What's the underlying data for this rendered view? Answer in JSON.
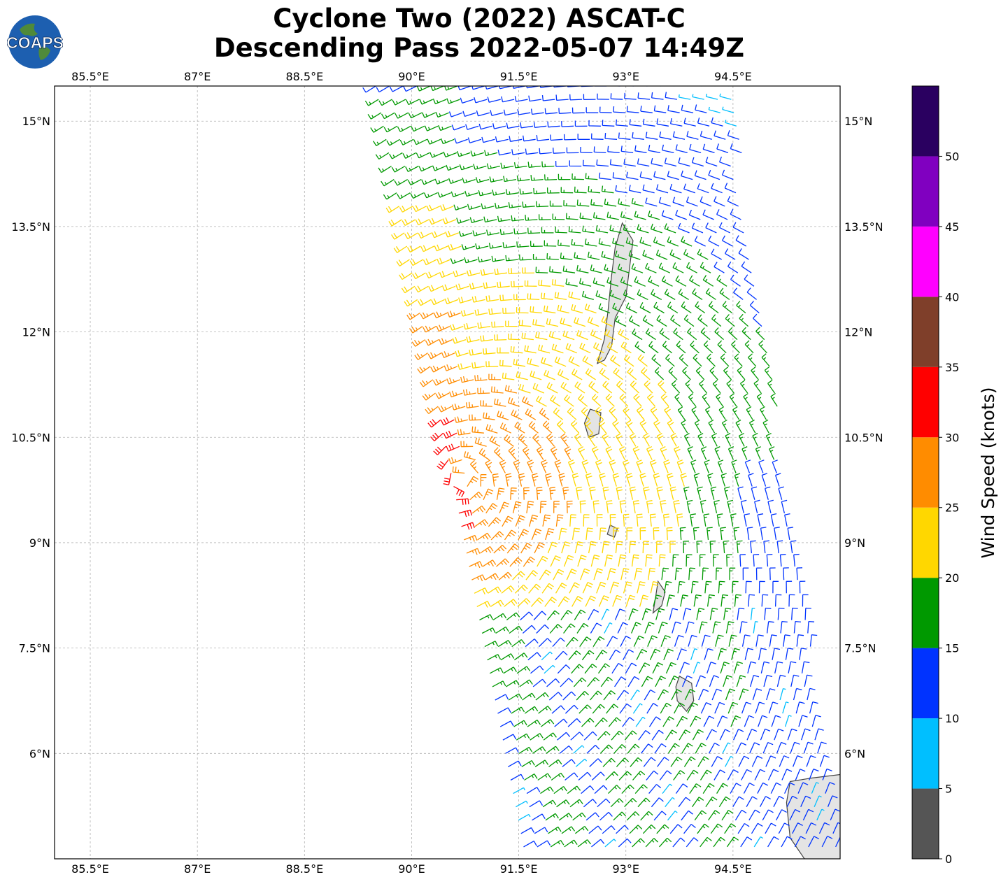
{
  "title": {
    "line1": "Cyclone Two (2022) ASCAT-C",
    "line2": "Descending Pass 2022-05-07 14:49Z"
  },
  "logo": {
    "text": "COAPS",
    "icon": "globe-icon"
  },
  "map": {
    "lon_range": [
      85.0,
      96.0
    ],
    "lat_range": [
      4.5,
      15.5
    ],
    "lon_ticks": [
      {
        "value": 85.5,
        "label": "85.5°E"
      },
      {
        "value": 87.0,
        "label": "87°E"
      },
      {
        "value": 88.5,
        "label": "88.5°E"
      },
      {
        "value": 90.0,
        "label": "90°E"
      },
      {
        "value": 91.5,
        "label": "91.5°E"
      },
      {
        "value": 93.0,
        "label": "93°E"
      },
      {
        "value": 94.5,
        "label": "94.5°E"
      }
    ],
    "lat_ticks": [
      {
        "value": 15.0,
        "label": "15°N"
      },
      {
        "value": 13.5,
        "label": "13.5°N"
      },
      {
        "value": 12.0,
        "label": "12°N"
      },
      {
        "value": 10.5,
        "label": "10.5°N"
      },
      {
        "value": 9.0,
        "label": "9°N"
      },
      {
        "value": 7.5,
        "label": "7.5°N"
      },
      {
        "value": 6.0,
        "label": "6°N"
      }
    ],
    "gridlines": true,
    "swath_edges_lon": {
      "north_west": 89.4,
      "north_east": 94.5,
      "south_west": 91.5,
      "south_east": 96.0
    },
    "circulation_center": {
      "lon": 90.7,
      "lat": 9.9
    },
    "land_features": [
      "Andaman Islands",
      "Nicobar Islands",
      "Sumatra"
    ]
  },
  "colorbar": {
    "label": "Wind Speed (knots)",
    "ticks": [
      "0",
      "5",
      "10",
      "15",
      "20",
      "25",
      "30",
      "35",
      "40",
      "45",
      "50"
    ],
    "bins": [
      {
        "min": 0,
        "max": 5,
        "color": "#555555"
      },
      {
        "min": 5,
        "max": 10,
        "color": "#00bfff"
      },
      {
        "min": 10,
        "max": 15,
        "color": "#0033ff"
      },
      {
        "min": 15,
        "max": 20,
        "color": "#009900"
      },
      {
        "min": 20,
        "max": 25,
        "color": "#ffd700"
      },
      {
        "min": 25,
        "max": 30,
        "color": "#ff8c00"
      },
      {
        "min": 30,
        "max": 35,
        "color": "#ff0000"
      },
      {
        "min": 35,
        "max": 40,
        "color": "#7f3f2a"
      },
      {
        "min": 40,
        "max": 45,
        "color": "#ff00ff"
      },
      {
        "min": 45,
        "max": 50,
        "color": "#8000c0"
      },
      {
        "min": 50,
        "max": 55,
        "color": "#2a0060"
      }
    ]
  },
  "colors": {
    "land": "#e4e4e4",
    "coast": "#444444",
    "grid": "#b0b0b0"
  }
}
